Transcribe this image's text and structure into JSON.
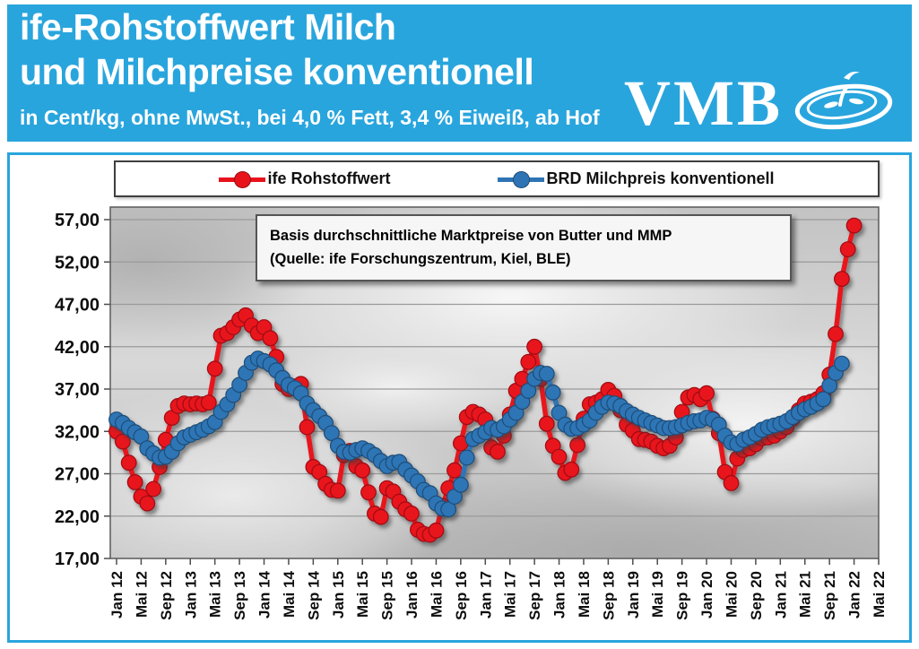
{
  "header": {
    "title_line1": "ife-Rohstoffwert Milch",
    "title_line2": "und Milchpreise konventionell",
    "subtitle": "in Cent/kg, ohne MwSt., bei 4,0 % Fett, 3,4 % Eiweiß, ab Hof",
    "logo_text": "VMB",
    "header_color": "#29a5dd"
  },
  "annotation": {
    "line1": "Basis durchschnittliche Marktpreise von Butter und MMP",
    "line2": "(Quelle: ife Forschungszentrum, Kiel, BLE)"
  },
  "chart_data": {
    "type": "line",
    "unit": "Cent/kg",
    "x_start": "Jan 2012",
    "x_interval": "monthly",
    "x_count": 125,
    "x_tick_every": 4,
    "x_tick_labels": [
      "Jan 12",
      "Mai 12",
      "Sep 12",
      "Jan 13",
      "Mai 13",
      "Sep 13",
      "Jan 14",
      "Mai 14",
      "Sep 14",
      "Jan 15",
      "Mai 15",
      "Sep 15",
      "Jan 16",
      "Mai 16",
      "Sep 16",
      "Jan 17",
      "Mai 17",
      "Sep 17",
      "Jan 18",
      "Mai 18",
      "Sep 18",
      "Jan 19",
      "Mai 19",
      "Sep 19",
      "Jan 20",
      "Mai 20",
      "Sep 20",
      "Jan 21",
      "Mai 21",
      "Sep 21",
      "Jan 22",
      "Mai 22"
    ],
    "ylim": [
      17,
      57
    ],
    "ytick_step": 5,
    "ytick_labels": [
      "57,00",
      "52,00",
      "47,00",
      "42,00",
      "37,00",
      "32,00",
      "27,00",
      "22,00",
      "17,00"
    ],
    "grid": true,
    "legend_position": "top",
    "series": [
      {
        "name": "ife Rohstoffwert",
        "color": "#e8121b",
        "edge_color": "#9f0b12",
        "values": [
          32.0,
          30.8,
          28.3,
          26.0,
          24.3,
          23.5,
          25.2,
          27.8,
          31.0,
          33.6,
          35.0,
          35.3,
          35.2,
          35.3,
          35.2,
          35.4,
          39.4,
          43.3,
          43.6,
          44.3,
          45.2,
          45.7,
          44.5,
          43.6,
          44.3,
          43.0,
          40.8,
          37.6,
          37.0,
          37.3,
          37.6,
          32.5,
          27.8,
          27.2,
          25.8,
          25.1,
          25.0,
          29.2,
          29.7,
          27.9,
          27.4,
          24.8,
          22.3,
          21.9,
          25.3,
          24.9,
          23.7,
          22.8,
          22.3,
          20.4,
          19.9,
          19.8,
          20.3,
          23.2,
          25.3,
          27.4,
          30.6,
          33.7,
          34.3,
          34.0,
          33.4,
          30.1,
          29.6,
          31.5,
          34.0,
          36.8,
          38.2,
          40.2,
          42.0,
          38.2,
          32.9,
          30.3,
          29.0,
          27.1,
          27.5,
          30.4,
          33.5,
          35.2,
          35.4,
          35.8,
          36.9,
          36.2,
          34.5,
          32.8,
          32.1,
          31.1,
          31.0,
          30.8,
          30.3,
          30.0,
          30.3,
          31.3,
          34.3,
          36.0,
          36.3,
          35.8,
          36.5,
          33.5,
          31.8,
          27.2,
          25.9,
          28.8,
          29.8,
          30.0,
          30.5,
          31.2,
          31.3,
          31.5,
          32.0,
          32.5,
          33.5,
          34.5,
          35.3,
          35.5,
          35.8,
          36.5,
          38.7,
          43.5,
          50.0,
          53.5,
          56.3
        ]
      },
      {
        "name": "BRD Milchpreis konventionell",
        "color": "#2e74b5",
        "edge_color": "#1f4e79",
        "values": [
          33.4,
          33.0,
          32.4,
          31.9,
          31.4,
          30.0,
          29.4,
          28.9,
          29.0,
          29.6,
          30.6,
          31.3,
          31.6,
          31.9,
          32.2,
          32.6,
          33.1,
          34.3,
          35.2,
          36.3,
          37.5,
          38.9,
          40.1,
          40.6,
          40.3,
          39.9,
          39.2,
          38.3,
          37.5,
          37.1,
          36.5,
          35.3,
          34.5,
          33.8,
          33.0,
          31.8,
          30.3,
          29.6,
          29.5,
          29.8,
          30.0,
          29.7,
          29.2,
          28.5,
          27.9,
          28.3,
          28.4,
          27.5,
          26.8,
          26.1,
          25.1,
          24.7,
          23.5,
          22.9,
          22.8,
          24.3,
          25.7,
          28.9,
          31.1,
          31.5,
          31.9,
          32.4,
          32.2,
          32.6,
          33.4,
          34.2,
          35.5,
          36.8,
          38.2,
          38.9,
          38.8,
          36.6,
          34.2,
          32.8,
          32.3,
          32.4,
          32.8,
          33.3,
          34.2,
          34.9,
          35.4,
          35.3,
          35.0,
          34.4,
          34.0,
          33.6,
          33.3,
          33.0,
          32.7,
          32.4,
          32.4,
          32.5,
          32.7,
          33.0,
          33.2,
          33.3,
          33.6,
          33.4,
          32.8,
          31.5,
          30.7,
          30.5,
          31.0,
          31.3,
          31.7,
          32.2,
          32.5,
          32.7,
          32.9,
          33.2,
          33.7,
          34.2,
          34.6,
          34.9,
          35.3,
          35.8,
          37.4,
          38.9,
          40.0
        ]
      }
    ]
  }
}
